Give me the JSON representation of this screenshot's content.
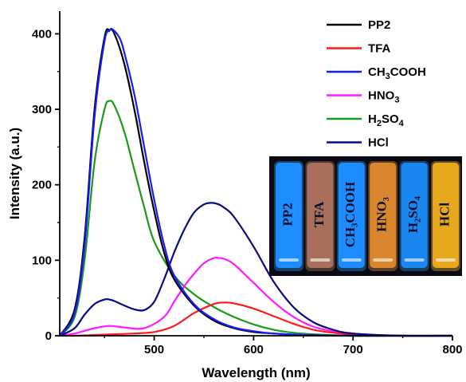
{
  "chart_data": {
    "type": "line",
    "title": "",
    "xlabel": "Wavelength (nm)",
    "ylabel": "Intensity (a.u.)",
    "xlim": [
      405,
      800
    ],
    "ylim": [
      0,
      430
    ],
    "xticks": [
      500,
      600,
      700,
      800
    ],
    "yticks": [
      0,
      100,
      200,
      300,
      400
    ],
    "grid": false,
    "legend_position": "top-right",
    "series": [
      {
        "name": "PP2",
        "color": "#000000",
        "x": [
          405,
          420,
          430,
          440,
          450,
          455,
          460,
          470,
          480,
          490,
          500,
          510,
          520,
          540,
          560,
          580,
          600,
          620,
          650,
          700,
          750,
          800
        ],
        "y": [
          0,
          35,
          130,
          300,
          395,
          405,
          400,
          360,
          300,
          230,
          165,
          110,
          75,
          40,
          20,
          10,
          5,
          3,
          1,
          0,
          0,
          0
        ]
      },
      {
        "name": "TFA",
        "color": "#ff1a1a",
        "x": [
          405,
          420,
          440,
          460,
          480,
          500,
          520,
          540,
          560,
          570,
          580,
          600,
          620,
          640,
          660,
          680,
          700,
          750,
          800
        ],
        "y": [
          0,
          0,
          1,
          2,
          3,
          5,
          13,
          30,
          42,
          44,
          43,
          36,
          26,
          16,
          8,
          4,
          2,
          0,
          0
        ]
      },
      {
        "name": "CH<sub>3</sub>COOH",
        "label_base": "CH",
        "label_sub": "3",
        "label_tail": "COOH",
        "color": "#1a1aff",
        "x": [
          405,
          420,
          430,
          440,
          450,
          455,
          458,
          465,
          470,
          480,
          490,
          500,
          510,
          520,
          540,
          560,
          580,
          600,
          620,
          650,
          700,
          750,
          800
        ],
        "y": [
          0,
          30,
          120,
          290,
          390,
          404,
          406,
          395,
          375,
          320,
          250,
          180,
          120,
          80,
          42,
          22,
          11,
          6,
          3,
          1,
          0,
          0,
          0
        ]
      },
      {
        "name": "HNO<sub>3</sub>",
        "label_base": "HNO",
        "label_sub": "3",
        "label_tail": "",
        "color": "#ff1aff",
        "x": [
          405,
          420,
          440,
          455,
          470,
          490,
          510,
          520,
          530,
          540,
          550,
          560,
          565,
          570,
          580,
          600,
          620,
          640,
          660,
          680,
          700,
          720,
          750,
          800
        ],
        "y": [
          0,
          3,
          10,
          13,
          11,
          10,
          25,
          45,
          65,
          82,
          96,
          103,
          103,
          102,
          95,
          70,
          45,
          25,
          12,
          6,
          3,
          1,
          0,
          0
        ]
      },
      {
        "name": "H<sub>2</sub>SO<sub>4</sub>",
        "label_base": "H",
        "label_sub": "2",
        "label_tail": "SO",
        "label_sub2": "4",
        "color": "#1a9a1a",
        "x": [
          405,
          420,
          430,
          440,
          450,
          455,
          460,
          470,
          480,
          490,
          500,
          520,
          540,
          560,
          580,
          600,
          620,
          640,
          660,
          700,
          750,
          800
        ],
        "y": [
          0,
          25,
          100,
          230,
          300,
          311,
          305,
          270,
          220,
          170,
          125,
          80,
          55,
          38,
          25,
          15,
          8,
          4,
          2,
          0,
          0,
          0
        ]
      },
      {
        "name": "HCl",
        "color": "#0a0a80",
        "x": [
          405,
          420,
          430,
          440,
          450,
          455,
          460,
          470,
          480,
          490,
          500,
          510,
          520,
          530,
          540,
          550,
          558,
          565,
          570,
          580,
          600,
          620,
          640,
          660,
          680,
          700,
          750,
          800
        ],
        "y": [
          0,
          10,
          28,
          42,
          48,
          48,
          46,
          40,
          35,
          34,
          45,
          75,
          110,
          140,
          163,
          174,
          176,
          174,
          170,
          158,
          118,
          72,
          38,
          18,
          8,
          3,
          0,
          0
        ]
      }
    ]
  },
  "inset": {
    "vials": [
      {
        "label": "PP2",
        "liquid": "#1e8dff",
        "glow": "#39a8ff"
      },
      {
        "label": "TFA",
        "liquid": "#a8705a",
        "glow": "#c98a6a"
      },
      {
        "label": "CH₃COOH",
        "liquid": "#1c8cff",
        "glow": "#3aa6ff"
      },
      {
        "label": "HNO₃",
        "liquid": "#d9862c",
        "glow": "#f0a040"
      },
      {
        "label": "H₂SO₄",
        "liquid": "#1a86f0",
        "glow": "#35a0ff"
      },
      {
        "label": "HCl",
        "liquid": "#e8a81e",
        "glow": "#ffc83a"
      }
    ]
  }
}
